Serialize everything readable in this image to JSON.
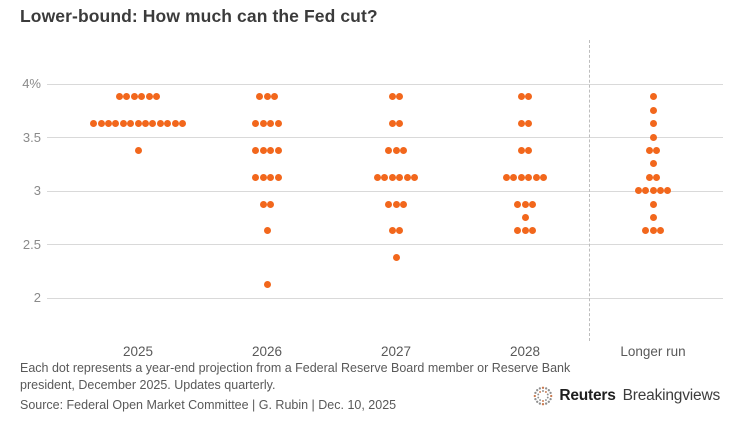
{
  "header": {
    "title": "Lower-bound: How much can the Fed cut?"
  },
  "chart_data": {
    "type": "scatter",
    "subtype": "dot-plot",
    "title": "Lower-bound: How much can the Fed cut?",
    "ylabel": "",
    "xlabel": "",
    "ylim": [
      2,
      4
    ],
    "grid": "horizontal",
    "legend": "none",
    "y_ticks": [
      {
        "label": "4%",
        "value": 4
      },
      {
        "label": "3.5",
        "value": 3.5
      },
      {
        "label": "3",
        "value": 3
      },
      {
        "label": "2.5",
        "value": 2.5
      },
      {
        "label": "2",
        "value": 2
      }
    ],
    "columns": [
      {
        "label": "2025",
        "separated": false,
        "projections": [
          {
            "rate": 3.875,
            "count": 6
          },
          {
            "rate": 3.625,
            "count": 13
          },
          {
            "rate": 3.375,
            "count": 1
          }
        ]
      },
      {
        "label": "2026",
        "separated": false,
        "projections": [
          {
            "rate": 3.875,
            "count": 3
          },
          {
            "rate": 3.625,
            "count": 4
          },
          {
            "rate": 3.375,
            "count": 4
          },
          {
            "rate": 3.125,
            "count": 4
          },
          {
            "rate": 2.875,
            "count": 2
          },
          {
            "rate": 2.625,
            "count": 1
          },
          {
            "rate": 2.125,
            "count": 1
          }
        ]
      },
      {
        "label": "2027",
        "separated": false,
        "projections": [
          {
            "rate": 3.875,
            "count": 2
          },
          {
            "rate": 3.625,
            "count": 2
          },
          {
            "rate": 3.375,
            "count": 3
          },
          {
            "rate": 3.125,
            "count": 6
          },
          {
            "rate": 2.875,
            "count": 3
          },
          {
            "rate": 2.625,
            "count": 2
          },
          {
            "rate": 2.375,
            "count": 1
          }
        ]
      },
      {
        "label": "2028",
        "separated": false,
        "projections": [
          {
            "rate": 3.875,
            "count": 2
          },
          {
            "rate": 3.625,
            "count": 2
          },
          {
            "rate": 3.375,
            "count": 2
          },
          {
            "rate": 3.125,
            "count": 6
          },
          {
            "rate": 2.875,
            "count": 3
          },
          {
            "rate": 2.75,
            "count": 1
          },
          {
            "rate": 2.625,
            "count": 3
          }
        ]
      },
      {
        "label": "Longer run",
        "separated": true,
        "projections": [
          {
            "rate": 3.875,
            "count": 1
          },
          {
            "rate": 3.75,
            "count": 1
          },
          {
            "rate": 3.625,
            "count": 1
          },
          {
            "rate": 3.5,
            "count": 1
          },
          {
            "rate": 3.375,
            "count": 2
          },
          {
            "rate": 3.25,
            "count": 1
          },
          {
            "rate": 3.125,
            "count": 2
          },
          {
            "rate": 3.0,
            "count": 5
          },
          {
            "rate": 2.875,
            "count": 1
          },
          {
            "rate": 2.75,
            "count": 1
          },
          {
            "rate": 2.625,
            "count": 3
          }
        ]
      }
    ],
    "colors": {
      "dot": "#f2671c",
      "grid": "#d9d9d9",
      "separator": "#bdbdbd",
      "tick_text": "#8a8a8a",
      "axis_text": "#595959"
    }
  },
  "footer": {
    "note": "Each dot represents a year-end projection from a Federal Reserve Board member or Reserve Bank president, December 2025. Updates quarterly.",
    "source": "Source: Federal Open Market Committee | G. Rubin | Dec. 10, 2025",
    "brand": {
      "name": "Reuters",
      "suffix": "Breakingviews"
    }
  }
}
